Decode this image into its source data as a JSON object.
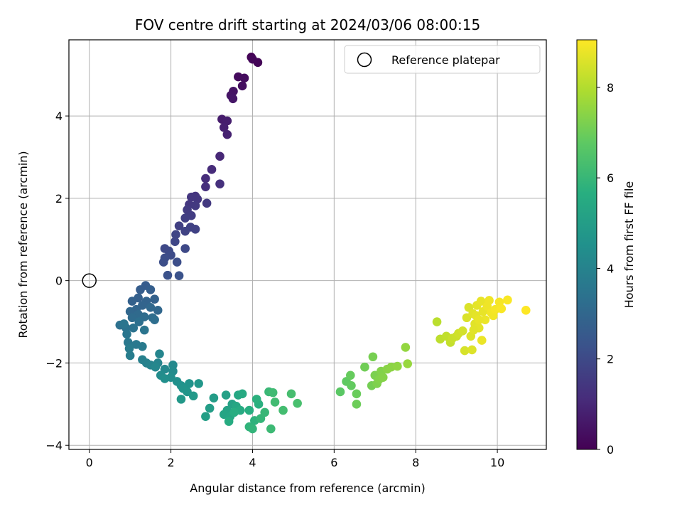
{
  "chart_data": {
    "type": "scatter",
    "title": "FOV centre drift starting at 2024/03/06 08:00:15",
    "xlabel": "Angular distance from reference (arcmin)",
    "ylabel": "Rotation from reference (arcmin)",
    "xlim": [
      -0.5,
      11.2
    ],
    "ylim": [
      -4.1,
      5.85
    ],
    "x_ticks": [
      0,
      2,
      4,
      6,
      8,
      10
    ],
    "y_ticks": [
      -4,
      -2,
      0,
      2,
      4
    ],
    "x_tick_labels": [
      "0",
      "2",
      "4",
      "6",
      "8",
      "10"
    ],
    "y_tick_labels": [
      "−4",
      "−2",
      "0",
      "2",
      "4"
    ],
    "grid": true,
    "legend": {
      "placement": "top-right",
      "entries": [
        {
          "label": "Reference platepar",
          "marker": "open-circle",
          "color": "#000000"
        }
      ]
    },
    "reference_point": {
      "x": 0,
      "y": 0
    },
    "colorbar": {
      "label": "Hours from first FF file",
      "colormap": "viridis",
      "range": [
        0,
        9.05
      ],
      "ticks": [
        0,
        2,
        4,
        6,
        8
      ],
      "tick_labels": [
        "0",
        "2",
        "4",
        "6",
        "8"
      ]
    },
    "points": [
      [
        3.97,
        5.43,
        0.05
      ],
      [
        4.13,
        5.3,
        0.1
      ],
      [
        4.0,
        5.38,
        0.15
      ],
      [
        3.65,
        4.95,
        0.25
      ],
      [
        3.8,
        4.92,
        0.3
      ],
      [
        3.75,
        4.73,
        0.35
      ],
      [
        3.53,
        4.6,
        0.45
      ],
      [
        3.47,
        4.5,
        0.5
      ],
      [
        3.52,
        4.42,
        0.55
      ],
      [
        3.25,
        3.92,
        0.7
      ],
      [
        3.38,
        3.88,
        0.75
      ],
      [
        3.3,
        3.72,
        0.8
      ],
      [
        3.38,
        3.55,
        0.85
      ],
      [
        3.2,
        3.02,
        1.0
      ],
      [
        3.0,
        2.7,
        1.1
      ],
      [
        2.85,
        2.48,
        1.15
      ],
      [
        2.85,
        2.28,
        1.2
      ],
      [
        3.2,
        2.35,
        1.25
      ],
      [
        2.6,
        2.05,
        1.35
      ],
      [
        2.5,
        2.03,
        1.4
      ],
      [
        2.65,
        1.98,
        1.4
      ],
      [
        2.45,
        1.85,
        1.45
      ],
      [
        2.88,
        1.88,
        1.5
      ],
      [
        2.6,
        1.82,
        1.5
      ],
      [
        2.4,
        1.72,
        1.55
      ],
      [
        2.5,
        1.58,
        1.6
      ],
      [
        2.35,
        1.52,
        1.65
      ],
      [
        2.2,
        1.33,
        1.7
      ],
      [
        2.48,
        1.3,
        1.75
      ],
      [
        2.6,
        1.25,
        1.75
      ],
      [
        2.35,
        1.2,
        1.8
      ],
      [
        2.12,
        1.12,
        1.85
      ],
      [
        2.1,
        0.95,
        1.9
      ],
      [
        1.85,
        0.78,
        1.95
      ],
      [
        1.95,
        0.72,
        2.0
      ],
      [
        2.35,
        0.78,
        2.0
      ],
      [
        2.0,
        0.62,
        2.05
      ],
      [
        1.85,
        0.55,
        2.1
      ],
      [
        1.82,
        0.45,
        2.15
      ],
      [
        2.15,
        0.45,
        2.15
      ],
      [
        1.92,
        0.13,
        2.25
      ],
      [
        2.2,
        0.12,
        2.3
      ],
      [
        1.38,
        -0.12,
        2.6
      ],
      [
        1.25,
        -0.22,
        2.65
      ],
      [
        1.5,
        -0.22,
        2.7
      ],
      [
        1.2,
        -0.42,
        2.75
      ],
      [
        1.05,
        -0.5,
        2.8
      ],
      [
        1.6,
        -0.45,
        2.8
      ],
      [
        1.4,
        -0.5,
        2.85
      ],
      [
        1.3,
        -0.6,
        2.9
      ],
      [
        1.15,
        -0.7,
        2.95
      ],
      [
        1.68,
        -0.72,
        3.0
      ],
      [
        1.0,
        -0.75,
        3.0
      ],
      [
        1.5,
        -0.65,
        3.05
      ],
      [
        1.2,
        -0.82,
        3.1
      ],
      [
        1.05,
        -0.9,
        3.15
      ],
      [
        1.35,
        -0.88,
        3.2
      ],
      [
        1.55,
        -0.9,
        3.2
      ],
      [
        1.6,
        -0.95,
        3.25
      ],
      [
        1.22,
        -1.0,
        3.3
      ],
      [
        0.75,
        -1.08,
        3.35
      ],
      [
        0.9,
        -1.15,
        3.4
      ],
      [
        1.08,
        -1.15,
        3.4
      ],
      [
        1.35,
        -1.2,
        3.45
      ],
      [
        0.85,
        -1.05,
        3.5
      ],
      [
        0.92,
        -1.3,
        3.55
      ],
      [
        0.95,
        -1.5,
        3.6
      ],
      [
        1.15,
        -1.55,
        3.65
      ],
      [
        1.3,
        -1.6,
        3.7
      ],
      [
        0.98,
        -1.65,
        3.75
      ],
      [
        1.0,
        -1.82,
        3.8
      ],
      [
        1.3,
        -1.92,
        3.9
      ],
      [
        1.4,
        -2.0,
        3.95
      ],
      [
        1.5,
        -2.05,
        4.0
      ],
      [
        1.68,
        -2.0,
        4.05
      ],
      [
        1.72,
        -1.78,
        4.1
      ],
      [
        1.62,
        -2.1,
        4.15
      ],
      [
        1.85,
        -2.15,
        4.2
      ],
      [
        2.05,
        -2.05,
        4.25
      ],
      [
        2.05,
        -2.2,
        4.3
      ],
      [
        1.75,
        -2.3,
        4.35
      ],
      [
        2.0,
        -2.35,
        4.4
      ],
      [
        1.85,
        -2.38,
        4.45
      ],
      [
        2.15,
        -2.45,
        4.5
      ],
      [
        2.25,
        -2.55,
        4.55
      ],
      [
        2.45,
        -2.5,
        4.6
      ],
      [
        2.3,
        -2.62,
        4.65
      ],
      [
        2.4,
        -2.7,
        4.7
      ],
      [
        2.68,
        -2.5,
        4.75
      ],
      [
        2.25,
        -2.88,
        4.8
      ],
      [
        2.55,
        -2.8,
        4.85
      ],
      [
        3.05,
        -2.85,
        4.95
      ],
      [
        2.95,
        -3.1,
        5.0
      ],
      [
        2.85,
        -3.3,
        5.05
      ],
      [
        3.35,
        -2.78,
        5.1
      ],
      [
        3.5,
        -3.0,
        5.15
      ],
      [
        3.38,
        -3.15,
        5.2
      ],
      [
        3.3,
        -3.25,
        5.25
      ],
      [
        3.45,
        -3.3,
        5.3
      ],
      [
        3.6,
        -3.05,
        5.35
      ],
      [
        3.65,
        -2.78,
        5.4
      ],
      [
        3.75,
        -2.75,
        5.45
      ],
      [
        3.7,
        -3.15,
        5.5
      ],
      [
        3.42,
        -3.42,
        5.55
      ],
      [
        3.55,
        -3.2,
        5.6
      ],
      [
        3.92,
        -3.15,
        5.65
      ],
      [
        4.15,
        -3.0,
        5.7
      ],
      [
        4.1,
        -2.88,
        5.75
      ],
      [
        4.05,
        -3.4,
        5.8
      ],
      [
        3.92,
        -3.55,
        5.85
      ],
      [
        4.0,
        -3.6,
        5.9
      ],
      [
        4.2,
        -3.35,
        5.95
      ],
      [
        4.3,
        -3.2,
        6.0
      ],
      [
        4.4,
        -2.7,
        6.05
      ],
      [
        4.45,
        -3.6,
        6.1
      ],
      [
        4.5,
        -2.72,
        6.15
      ],
      [
        4.55,
        -2.95,
        6.2
      ],
      [
        4.75,
        -3.15,
        6.25
      ],
      [
        4.95,
        -2.75,
        6.3
      ],
      [
        5.1,
        -2.98,
        6.35
      ],
      [
        6.15,
        -2.7,
        6.7
      ],
      [
        6.3,
        -2.45,
        6.8
      ],
      [
        6.42,
        -2.55,
        6.85
      ],
      [
        6.4,
        -2.3,
        6.9
      ],
      [
        6.55,
        -2.75,
        6.95
      ],
      [
        6.55,
        -3.0,
        7.0
      ],
      [
        6.75,
        -2.1,
        7.05
      ],
      [
        6.92,
        -2.55,
        7.1
      ],
      [
        6.95,
        -1.85,
        7.15
      ],
      [
        7.0,
        -2.3,
        7.2
      ],
      [
        7.05,
        -2.5,
        7.25
      ],
      [
        7.1,
        -2.4,
        7.3
      ],
      [
        7.15,
        -2.2,
        7.3
      ],
      [
        7.2,
        -2.35,
        7.35
      ],
      [
        7.3,
        -2.15,
        7.4
      ],
      [
        7.4,
        -2.1,
        7.45
      ],
      [
        7.55,
        -2.08,
        7.5
      ],
      [
        7.75,
        -1.62,
        7.55
      ],
      [
        7.8,
        -2.02,
        7.6
      ],
      [
        8.52,
        -1.0,
        8.1
      ],
      [
        8.6,
        -1.42,
        8.15
      ],
      [
        8.75,
        -1.35,
        8.2
      ],
      [
        8.85,
        -1.5,
        8.25
      ],
      [
        8.9,
        -1.4,
        8.3
      ],
      [
        9.0,
        -1.35,
        8.35
      ],
      [
        9.05,
        -1.28,
        8.4
      ],
      [
        9.15,
        -1.22,
        8.45
      ],
      [
        9.2,
        -1.7,
        8.5
      ],
      [
        9.25,
        -0.9,
        8.55
      ],
      [
        9.3,
        -0.65,
        8.55
      ],
      [
        9.35,
        -1.35,
        8.6
      ],
      [
        9.38,
        -1.68,
        8.6
      ],
      [
        9.4,
        -0.8,
        8.65
      ],
      [
        9.45,
        -1.05,
        8.65
      ],
      [
        9.5,
        -0.6,
        8.7
      ],
      [
        9.55,
        -1.15,
        8.7
      ],
      [
        9.6,
        -0.5,
        8.75
      ],
      [
        9.65,
        -0.75,
        8.75
      ],
      [
        9.62,
        -1.45,
        8.8
      ],
      [
        9.7,
        -0.95,
        8.8
      ],
      [
        9.75,
        -0.62,
        8.85
      ],
      [
        9.8,
        -0.48,
        8.85
      ],
      [
        9.85,
        -0.78,
        8.9
      ],
      [
        9.9,
        -0.85,
        8.9
      ],
      [
        9.95,
        -0.7,
        8.95
      ],
      [
        10.05,
        -0.52,
        8.95
      ],
      [
        10.1,
        -0.68,
        9.0
      ],
      [
        10.25,
        -0.47,
        9.0
      ],
      [
        10.7,
        -0.72,
        9.05
      ],
      [
        9.48,
        -0.85,
        8.7
      ],
      [
        9.55,
        -0.95,
        8.75
      ],
      [
        9.42,
        -1.2,
        8.65
      ]
    ]
  }
}
